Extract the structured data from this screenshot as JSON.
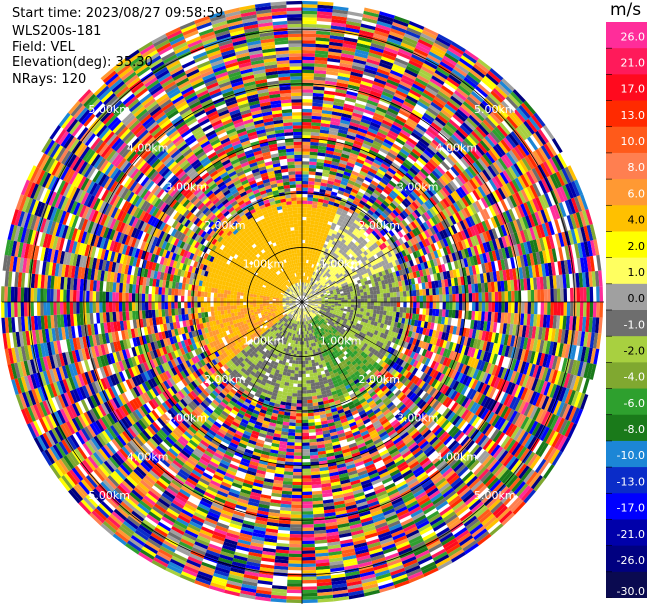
{
  "info": {
    "start_time": "Start time: 2023/08/27 09:58:59",
    "instrument": "WLS200s-181",
    "field": "Field: VEL",
    "elevation": "Elevation(deg): 35.30",
    "nrays": "NRays: 120"
  },
  "colorbar": {
    "unit": "m/s",
    "ticks": [
      "26.0",
      "21.0",
      "17.0",
      "13.0",
      "10.0",
      "8.0",
      "6.0",
      "4.0",
      "2.0",
      "1.0",
      "0.0",
      "-1.0",
      "-2.0",
      "-4.0",
      "-6.0",
      "-8.0",
      "-10.0",
      "-13.0",
      "-17.0",
      "-21.0",
      "-26.0",
      "-30.0"
    ],
    "colors": [
      "#ff2d9a",
      "#ff1a5a",
      "#ff0a1e",
      "#ff2a00",
      "#ff5a1a",
      "#ff7f50",
      "#ff9933",
      "#ffc000",
      "#ffff00",
      "#ffff60",
      "#a0a0a0",
      "#6e6e6e",
      "#a8d040",
      "#80a830",
      "#2ea02e",
      "#1a7a1a",
      "#1c86d6",
      "#0a2cc8",
      "#0000ff",
      "#0000aa",
      "#000080",
      "#0a0a50"
    ]
  },
  "chart_data": {
    "type": "heatmap",
    "projection": "polar PPI",
    "field": "VEL",
    "unit": "m/s",
    "nrays": 120,
    "ring_labels": [
      "1.00km",
      "2.00km",
      "3.00km",
      "4.00km",
      "5.00km"
    ],
    "clear_air_radius_km": 1.85,
    "max_range_km": 5.5,
    "regions": [
      {
        "sector_deg": [
          280,
          20
        ],
        "velocity": 3.0,
        "note": "yellow"
      },
      {
        "sector_deg": [
          230,
          280
        ],
        "velocity": 4.0,
        "note": "orange"
      },
      {
        "sector_deg": [
          20,
          70
        ],
        "velocity": 0.0,
        "note": "gray"
      },
      {
        "sector_deg": [
          70,
          130
        ],
        "velocity": -2.0,
        "note": "light green"
      },
      {
        "sector_deg": [
          130,
          160
        ],
        "velocity": -6.0,
        "note": "dark green"
      },
      {
        "sector_deg": [
          160,
          230
        ],
        "velocity": -2.0,
        "note": "green/gray"
      }
    ]
  }
}
